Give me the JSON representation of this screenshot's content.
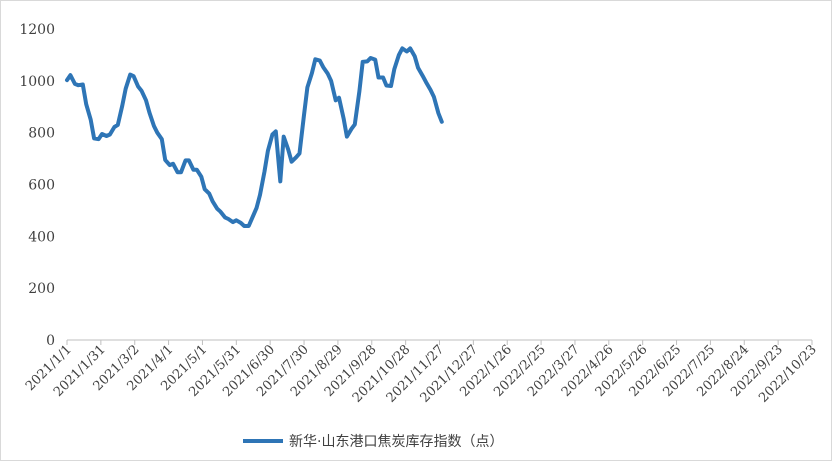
{
  "chart_data": {
    "type": "line",
    "ylim": [
      0,
      1200
    ],
    "yticks": [
      0,
      200,
      400,
      600,
      800,
      1000,
      1200
    ],
    "xlim": [
      "2021-01-01",
      "2022-10-23"
    ],
    "xtick_labels": [
      "2021/1/1",
      "2021/1/31",
      "2021/3/2",
      "2021/4/1",
      "2021/5/1",
      "2021/5/31",
      "2021/6/30",
      "2021/7/30",
      "2021/8/29",
      "2021/9/28",
      "2021/10/28",
      "2021/11/27",
      "2021/12/27",
      "2022/1/26",
      "2022/2/25",
      "2022/3/27",
      "2022/4/26",
      "2022/5/26",
      "2022/6/25",
      "2022/7/25",
      "2022/8/24",
      "2022/9/23",
      "2022/10/23"
    ],
    "grid": false,
    "legend_position": "bottom",
    "colors": {
      "line": "#2e75b6",
      "axis": "#bfbfbf",
      "text": "#404040"
    },
    "series": [
      {
        "name": "新华·山东港口焦炭库存指数（点）",
        "points": [
          [
            "2021-01-01",
            1003
          ],
          [
            "2021-01-04",
            1022
          ],
          [
            "2021-01-08",
            988
          ],
          [
            "2021-01-11",
            983
          ],
          [
            "2021-01-15",
            986
          ],
          [
            "2021-01-18",
            910
          ],
          [
            "2021-01-22",
            850
          ],
          [
            "2021-01-25",
            778
          ],
          [
            "2021-01-29",
            775
          ],
          [
            "2021-02-01",
            795
          ],
          [
            "2021-02-05",
            787
          ],
          [
            "2021-02-08",
            793
          ],
          [
            "2021-02-12",
            822
          ],
          [
            "2021-02-15",
            830
          ],
          [
            "2021-02-19",
            905
          ],
          [
            "2021-02-22",
            970
          ],
          [
            "2021-02-26",
            1024
          ],
          [
            "2021-03-01",
            1018
          ],
          [
            "2021-03-05",
            978
          ],
          [
            "2021-03-08",
            962
          ],
          [
            "2021-03-12",
            925
          ],
          [
            "2021-03-15",
            878
          ],
          [
            "2021-03-19",
            826
          ],
          [
            "2021-03-22",
            800
          ],
          [
            "2021-03-26",
            775
          ],
          [
            "2021-03-29",
            695
          ],
          [
            "2021-04-02",
            675
          ],
          [
            "2021-04-05",
            680
          ],
          [
            "2021-04-09",
            647
          ],
          [
            "2021-04-12",
            647
          ],
          [
            "2021-04-16",
            693
          ],
          [
            "2021-04-19",
            693
          ],
          [
            "2021-04-23",
            657
          ],
          [
            "2021-04-26",
            657
          ],
          [
            "2021-04-30",
            630
          ],
          [
            "2021-05-03",
            582
          ],
          [
            "2021-05-07",
            565
          ],
          [
            "2021-05-10",
            535
          ],
          [
            "2021-05-14",
            507
          ],
          [
            "2021-05-17",
            495
          ],
          [
            "2021-05-21",
            473
          ],
          [
            "2021-05-24",
            467
          ],
          [
            "2021-05-28",
            455
          ],
          [
            "2021-05-31",
            462
          ],
          [
            "2021-06-04",
            452
          ],
          [
            "2021-06-07",
            440
          ],
          [
            "2021-06-11",
            440
          ],
          [
            "2021-06-14",
            470
          ],
          [
            "2021-06-18",
            510
          ],
          [
            "2021-06-21",
            560
          ],
          [
            "2021-06-25",
            650
          ],
          [
            "2021-06-28",
            730
          ],
          [
            "2021-07-02",
            793
          ],
          [
            "2021-07-05",
            805
          ],
          [
            "2021-07-09",
            612
          ],
          [
            "2021-07-12",
            785
          ],
          [
            "2021-07-16",
            735
          ],
          [
            "2021-07-19",
            688
          ],
          [
            "2021-07-23",
            705
          ],
          [
            "2021-07-26",
            720
          ],
          [
            "2021-07-30",
            868
          ],
          [
            "2021-08-02",
            975
          ],
          [
            "2021-08-06",
            1030
          ],
          [
            "2021-08-09",
            1083
          ],
          [
            "2021-08-13",
            1078
          ],
          [
            "2021-08-16",
            1053
          ],
          [
            "2021-08-20",
            1027
          ],
          [
            "2021-08-23",
            1000
          ],
          [
            "2021-08-27",
            925
          ],
          [
            "2021-08-30",
            935
          ],
          [
            "2021-09-03",
            855
          ],
          [
            "2021-09-06",
            785
          ],
          [
            "2021-09-10",
            815
          ],
          [
            "2021-09-13",
            832
          ],
          [
            "2021-09-17",
            960
          ],
          [
            "2021-09-20",
            1073
          ],
          [
            "2021-09-24",
            1075
          ],
          [
            "2021-09-27",
            1088
          ],
          [
            "2021-10-01",
            1082
          ],
          [
            "2021-10-04",
            1013
          ],
          [
            "2021-10-08",
            1013
          ],
          [
            "2021-10-11",
            982
          ],
          [
            "2021-10-15",
            980
          ],
          [
            "2021-10-18",
            1045
          ],
          [
            "2021-10-22",
            1100
          ],
          [
            "2021-10-25",
            1125
          ],
          [
            "2021-10-29",
            1113
          ],
          [
            "2021-11-01",
            1125
          ],
          [
            "2021-11-05",
            1095
          ],
          [
            "2021-11-08",
            1050
          ],
          [
            "2021-11-12",
            1020
          ],
          [
            "2021-11-15",
            995
          ],
          [
            "2021-11-19",
            965
          ],
          [
            "2021-11-22",
            938
          ],
          [
            "2021-11-26",
            875
          ],
          [
            "2021-11-29",
            842
          ]
        ]
      }
    ]
  }
}
